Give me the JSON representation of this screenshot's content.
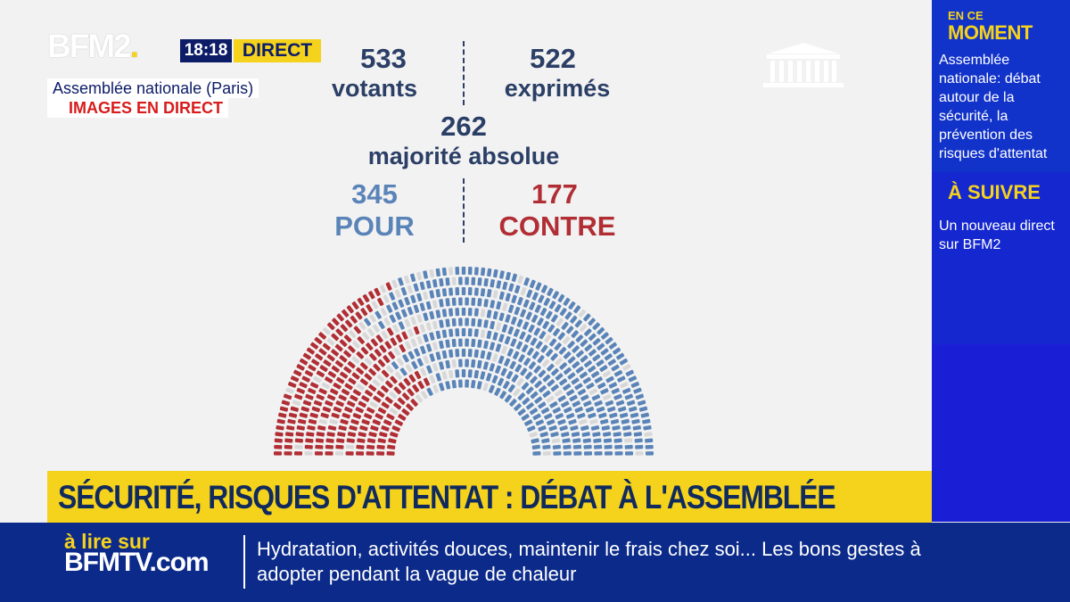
{
  "channel": {
    "logo_text": "BFM2",
    "logo_dot": ".",
    "time": "18:18",
    "live_label": "DIRECT",
    "location": "Assemblée nationale (Paris)",
    "live_images": "IMAGES EN DIRECT"
  },
  "vote": {
    "votants_value": "533",
    "votants_label": "votants",
    "exprimes_value": "522",
    "exprimes_label": "exprimés",
    "majorite_value": "262",
    "majorite_label": "majorité absolue",
    "pour_value": "345",
    "pour_label": "POUR",
    "contre_value": "177",
    "contre_label": "CONTRE",
    "colors": {
      "pour": "#5a84b8",
      "contre": "#b02e34",
      "absent": "#d8d8d8"
    }
  },
  "sidebar": {
    "now_small": "EN CE",
    "now_big": "MOMENT",
    "now_text": "Assemblée nationale: débat autour de la sécurité, la prévention des risques d'attentat",
    "next_title": "À SUIVRE",
    "next_text": "Un nouveau direct sur BFM2"
  },
  "banner": {
    "headline": "SÉCURITÉ, RISQUES D'ATTENTAT : DÉBAT À L'ASSEMBLÉE"
  },
  "ticker": {
    "read_small": "à lire sur",
    "read_site": "BFMTV.com",
    "text": "Hydratation, activités douces, maintenir le frais chez soi... Les bons gestes à adopter pendant la vague de chaleur"
  },
  "icons": {
    "assembly": "assembly-building-icon"
  }
}
